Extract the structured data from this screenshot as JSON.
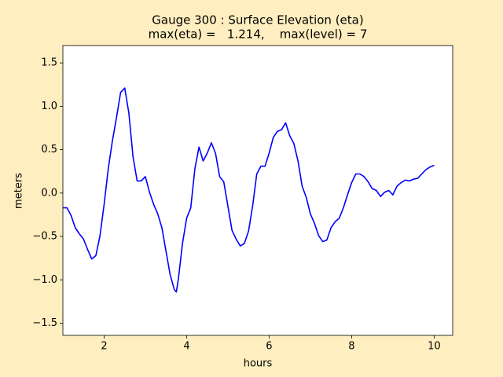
{
  "chart_data": {
    "type": "line",
    "title": "Gauge 300 : Surface Elevation (eta)",
    "subtitle": "max(eta) =   1.214,    max(level) = 7",
    "x_label": "hours",
    "y_label": "meters",
    "xlim": [
      1.0,
      10.45
    ],
    "ylim": [
      -1.64,
      1.7
    ],
    "xticks": [
      2,
      4,
      6,
      8,
      10
    ],
    "yticks": [
      {
        "value": -1.5,
        "label": "−1.5"
      },
      {
        "value": -1.0,
        "label": "−1.0"
      },
      {
        "value": -0.5,
        "label": "−0.5"
      },
      {
        "value": 0.0,
        "label": "0.0"
      },
      {
        "value": 0.5,
        "label": "0.5"
      },
      {
        "value": 1.0,
        "label": "1.0"
      },
      {
        "value": 1.5,
        "label": "1.5"
      }
    ],
    "grid": false,
    "series": [
      {
        "color": "#0000ff",
        "x": [
          1.0,
          1.1,
          1.2,
          1.3,
          1.4,
          1.5,
          1.6,
          1.7,
          1.8,
          1.9,
          2.0,
          2.1,
          2.2,
          2.3,
          2.4,
          2.5,
          2.6,
          2.7,
          2.8,
          2.9,
          3.0,
          3.1,
          3.2,
          3.3,
          3.4,
          3.5,
          3.6,
          3.7,
          3.75,
          3.8,
          3.9,
          4.0,
          4.1,
          4.2,
          4.3,
          4.4,
          4.5,
          4.6,
          4.7,
          4.8,
          4.9,
          5.0,
          5.1,
          5.2,
          5.3,
          5.4,
          5.5,
          5.6,
          5.7,
          5.8,
          5.9,
          6.0,
          6.1,
          6.2,
          6.3,
          6.4,
          6.5,
          6.6,
          6.7,
          6.8,
          6.9,
          7.0,
          7.1,
          7.2,
          7.3,
          7.4,
          7.5,
          7.6,
          7.7,
          7.8,
          7.9,
          8.0,
          8.1,
          8.2,
          8.3,
          8.4,
          8.5,
          8.6,
          8.7,
          8.8,
          8.9,
          9.0,
          9.1,
          9.2,
          9.3,
          9.4,
          9.5,
          9.6,
          9.7,
          9.8,
          9.9,
          10.0
        ],
        "values": [
          -0.17,
          -0.17,
          -0.26,
          -0.4,
          -0.47,
          -0.53,
          -0.65,
          -0.76,
          -0.72,
          -0.49,
          -0.13,
          0.28,
          0.6,
          0.87,
          1.16,
          1.21,
          0.92,
          0.42,
          0.14,
          0.14,
          0.19,
          0.01,
          -0.13,
          -0.24,
          -0.4,
          -0.67,
          -0.94,
          -1.11,
          -1.14,
          -0.99,
          -0.58,
          -0.29,
          -0.17,
          0.28,
          0.53,
          0.37,
          0.46,
          0.58,
          0.46,
          0.19,
          0.13,
          -0.15,
          -0.43,
          -0.53,
          -0.61,
          -0.58,
          -0.44,
          -0.15,
          0.22,
          0.31,
          0.31,
          0.46,
          0.64,
          0.71,
          0.73,
          0.81,
          0.66,
          0.57,
          0.37,
          0.08,
          -0.05,
          -0.24,
          -0.35,
          -0.49,
          -0.56,
          -0.54,
          -0.4,
          -0.33,
          -0.29,
          -0.17,
          -0.02,
          0.12,
          0.22,
          0.22,
          0.19,
          0.13,
          0.05,
          0.03,
          -0.04,
          0.01,
          0.03,
          -0.02,
          0.08,
          0.12,
          0.15,
          0.14,
          0.16,
          0.17,
          0.22,
          0.27,
          0.3,
          0.32
        ]
      }
    ]
  }
}
